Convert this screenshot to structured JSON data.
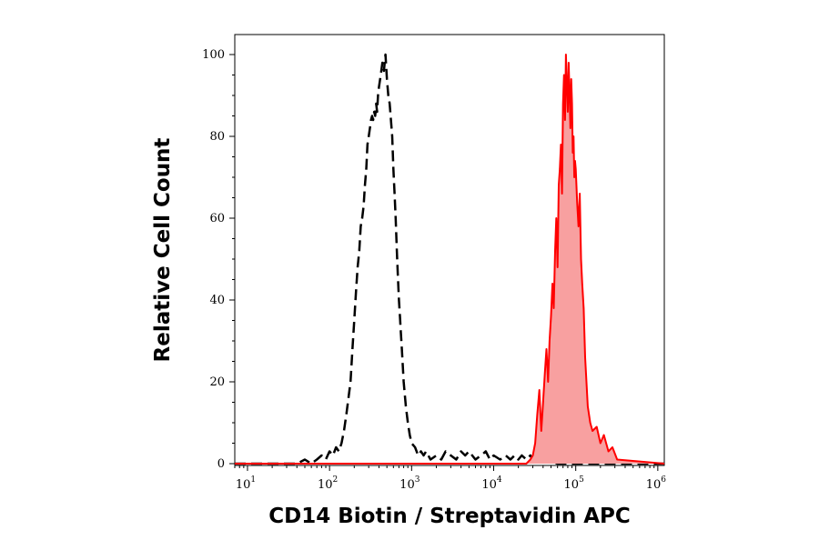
{
  "chart_data": {
    "type": "area",
    "title": "",
    "xlabel": "CD14 Biotin / Streptavidin APC",
    "ylabel": "Relative Cell Count",
    "xscale": "log",
    "xlim": [
      7,
      1200000
    ],
    "ylim": [
      0,
      102
    ],
    "x_ticks": [
      {
        "base": "10",
        "exp": "1",
        "value": 10
      },
      {
        "base": "10",
        "exp": "2",
        "value": 100
      },
      {
        "base": "10",
        "exp": "3",
        "value": 1000
      },
      {
        "base": "10",
        "exp": "4",
        "value": 10000
      },
      {
        "base": "10",
        "exp": "5",
        "value": 100000
      },
      {
        "base": "10",
        "exp": "6",
        "value": 1000000
      }
    ],
    "y_ticks": [
      "0",
      "20",
      "40",
      "60",
      "80",
      "100"
    ],
    "grid": false,
    "series": [
      {
        "style": "dashed-outline",
        "color": "#000000",
        "x": [
          7,
          15,
          25,
          40,
          50,
          60,
          70,
          80,
          90,
          100,
          110,
          120,
          130,
          140,
          150,
          160,
          170,
          180,
          190,
          200,
          210,
          220,
          230,
          240,
          250,
          260,
          270,
          280,
          290,
          300,
          310,
          320,
          330,
          340,
          350,
          360,
          370,
          380,
          390,
          400,
          420,
          440,
          460,
          480,
          500,
          520,
          540,
          560,
          580,
          600,
          620,
          640,
          660,
          680,
          700,
          720,
          740,
          760,
          780,
          800,
          850,
          900,
          950,
          1000,
          1100,
          1200,
          1300,
          1400,
          1500,
          1700,
          2000,
          2300,
          2600,
          3000,
          3500,
          4000,
          4500,
          5000,
          6000,
          7000,
          8000,
          9000,
          10000,
          12000,
          14000,
          16000,
          18000,
          20000,
          22000,
          25000,
          28000,
          30000,
          35000,
          40000,
          60000,
          100000,
          1200000
        ],
        "values": [
          0,
          0,
          0,
          0,
          1,
          0,
          1,
          2,
          1,
          3,
          2,
          4,
          3,
          5,
          8,
          12,
          16,
          20,
          28,
          35,
          42,
          48,
          52,
          58,
          60,
          63,
          68,
          72,
          78,
          80,
          82,
          84,
          85,
          84,
          86,
          85,
          88,
          86,
          90,
          92,
          95,
          98,
          96,
          100,
          94,
          90,
          88,
          84,
          80,
          72,
          66,
          60,
          52,
          46,
          40,
          36,
          32,
          28,
          24,
          20,
          14,
          10,
          7,
          5,
          4,
          2,
          3,
          2,
          3,
          1,
          2,
          1,
          3,
          2,
          1,
          3,
          2,
          3,
          1,
          2,
          3,
          1,
          2,
          1,
          2,
          1,
          2,
          1,
          2,
          1,
          2,
          1,
          0,
          1,
          0,
          0,
          0
        ]
      },
      {
        "style": "filled",
        "color": "#ff0000",
        "fill": "#f8a0a0",
        "x": [
          7,
          25000,
          28000,
          30000,
          32000,
          34000,
          36000,
          38000,
          40000,
          42000,
          44000,
          46000,
          48000,
          50000,
          52000,
          54000,
          56000,
          58000,
          60000,
          62000,
          64000,
          66000,
          68000,
          70000,
          72000,
          74000,
          76000,
          78000,
          80000,
          82000,
          84000,
          86000,
          88000,
          90000,
          92000,
          94000,
          96000,
          98000,
          100000,
          104000,
          108000,
          112000,
          116000,
          120000,
          125000,
          130000,
          140000,
          150000,
          160000,
          180000,
          200000,
          220000,
          250000,
          280000,
          320000,
          1200000
        ],
        "values": [
          0,
          0,
          1,
          2,
          5,
          12,
          18,
          8,
          15,
          22,
          28,
          20,
          30,
          36,
          44,
          38,
          52,
          60,
          48,
          68,
          72,
          78,
          66,
          88,
          95,
          84,
          100,
          92,
          86,
          98,
          90,
          82,
          94,
          88,
          76,
          80,
          70,
          74,
          72,
          64,
          58,
          66,
          50,
          44,
          38,
          26,
          14,
          10,
          8,
          9,
          5,
          7,
          3,
          4,
          1,
          0
        ]
      }
    ]
  }
}
